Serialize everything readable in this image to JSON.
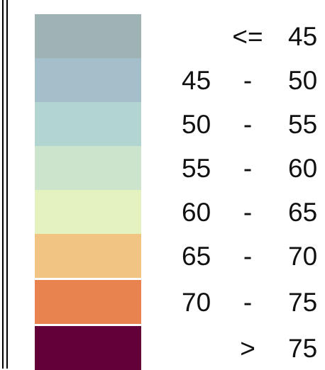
{
  "legend": {
    "classes": [
      {
        "low": "",
        "separator": "<=",
        "high": "45",
        "color": "#9fb2b4"
      },
      {
        "low": "45",
        "separator": "-",
        "high": "50",
        "color": "#a5bfca"
      },
      {
        "low": "50",
        "separator": "-",
        "high": "55",
        "color": "#b2d5d2"
      },
      {
        "low": "55",
        "separator": "-",
        "high": "60",
        "color": "#cde4cc"
      },
      {
        "low": "60",
        "separator": "-",
        "high": "65",
        "color": "#e3f2be"
      },
      {
        "low": "65",
        "separator": "-",
        "high": "70",
        "color": "#f2c484"
      },
      {
        "low": "70",
        "separator": "-",
        "high": "75",
        "color": "#e8824f"
      },
      {
        "low": "",
        "separator": ">",
        "high": "75",
        "color": "#63003a"
      }
    ]
  }
}
